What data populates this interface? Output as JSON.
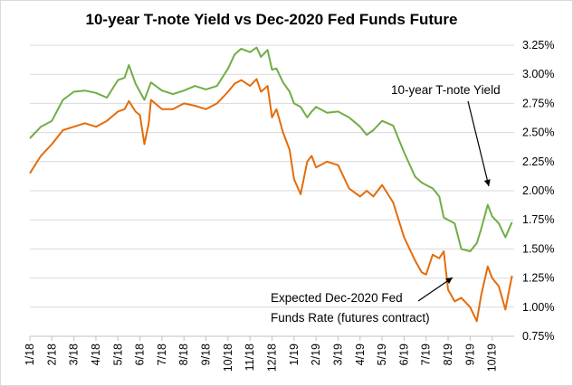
{
  "chart_data": {
    "type": "line",
    "title": "10-year T-note Yield vs Dec-2020 Fed Funds Future",
    "xlabel": "",
    "ylabel": "",
    "ylim": [
      0.75,
      3.25
    ],
    "y_ticks": [
      "0.75%",
      "1.00%",
      "1.25%",
      "1.50%",
      "1.75%",
      "2.00%",
      "2.25%",
      "2.50%",
      "2.75%",
      "3.00%",
      "3.25%"
    ],
    "y_tick_values": [
      0.75,
      1.0,
      1.25,
      1.5,
      1.75,
      2.0,
      2.25,
      2.5,
      2.75,
      3.0,
      3.25
    ],
    "x_ticks": [
      "1/18",
      "2/18",
      "3/18",
      "4/18",
      "5/18",
      "6/18",
      "7/18",
      "8/18",
      "9/18",
      "10/18",
      "11/18",
      "12/18",
      "1/19",
      "2/19",
      "3/19",
      "4/19",
      "5/19",
      "6/19",
      "7/19",
      "8/19",
      "9/19",
      "10/19"
    ],
    "grid": true,
    "series": [
      {
        "color": "#70ad47",
        "x": [
          0,
          0.5,
          1,
          1.5,
          2,
          2.5,
          3,
          3.5,
          4,
          4.3,
          4.5,
          4.8,
          5,
          5.2,
          5.4,
          5.5,
          6,
          6.5,
          7,
          7.5,
          8,
          8.5,
          9,
          9.3,
          9.6,
          10,
          10.3,
          10.5,
          10.8,
          11,
          11.2,
          11.5,
          11.8,
          12,
          12.3,
          12.6,
          12.8,
          13,
          13.5,
          14,
          14.5,
          15,
          15.3,
          15.6,
          16,
          16.5,
          17,
          17.5,
          17.8,
          18,
          18.3,
          18.6,
          18.8,
          19,
          19.3,
          19.6,
          20,
          20.3,
          20.5,
          20.8,
          21,
          21.3,
          21.6,
          21.9
        ],
        "values": [
          2.45,
          2.55,
          2.6,
          2.78,
          2.85,
          2.86,
          2.84,
          2.8,
          2.95,
          2.97,
          3.08,
          2.92,
          2.85,
          2.78,
          2.88,
          2.93,
          2.86,
          2.83,
          2.86,
          2.9,
          2.87,
          2.9,
          3.05,
          3.17,
          3.22,
          3.19,
          3.23,
          3.15,
          3.21,
          3.04,
          3.05,
          2.93,
          2.85,
          2.75,
          2.72,
          2.63,
          2.68,
          2.72,
          2.67,
          2.68,
          2.63,
          2.55,
          2.48,
          2.52,
          2.6,
          2.56,
          2.33,
          2.12,
          2.07,
          2.05,
          2.02,
          1.95,
          1.77,
          1.75,
          1.72,
          1.5,
          1.48,
          1.55,
          1.67,
          1.88,
          1.78,
          1.72,
          1.6,
          1.73
        ]
      },
      {
        "color": "#e46c0a",
        "x": [
          0,
          0.5,
          1,
          1.5,
          2,
          2.5,
          3,
          3.5,
          4,
          4.3,
          4.5,
          4.8,
          5,
          5.2,
          5.4,
          5.5,
          6,
          6.5,
          7,
          7.5,
          8,
          8.5,
          9,
          9.3,
          9.6,
          10,
          10.3,
          10.5,
          10.8,
          11,
          11.2,
          11.5,
          11.8,
          12,
          12.3,
          12.6,
          12.8,
          13,
          13.5,
          14,
          14.5,
          15,
          15.3,
          15.6,
          16,
          16.5,
          17,
          17.5,
          17.8,
          18,
          18.3,
          18.6,
          18.8,
          19,
          19.3,
          19.6,
          20,
          20.3,
          20.5,
          20.8,
          21,
          21.3,
          21.6,
          21.9
        ],
        "values": [
          2.15,
          2.3,
          2.4,
          2.52,
          2.55,
          2.58,
          2.55,
          2.6,
          2.68,
          2.7,
          2.77,
          2.68,
          2.65,
          2.4,
          2.58,
          2.78,
          2.7,
          2.7,
          2.75,
          2.73,
          2.7,
          2.75,
          2.85,
          2.92,
          2.95,
          2.9,
          2.96,
          2.85,
          2.9,
          2.63,
          2.7,
          2.5,
          2.35,
          2.1,
          1.97,
          2.25,
          2.3,
          2.2,
          2.25,
          2.22,
          2.02,
          1.95,
          2.0,
          1.95,
          2.05,
          1.9,
          1.6,
          1.4,
          1.3,
          1.28,
          1.45,
          1.42,
          1.48,
          1.15,
          1.05,
          1.08,
          1.0,
          0.88,
          1.1,
          1.35,
          1.25,
          1.18,
          0.98,
          1.27
        ]
      }
    ],
    "annotations": [
      {
        "lines": [
          "10-year T-note Yield"
        ]
      },
      {
        "lines": [
          "Expected Dec-2020 Fed",
          "Funds Rate (futures contract)"
        ]
      }
    ]
  }
}
